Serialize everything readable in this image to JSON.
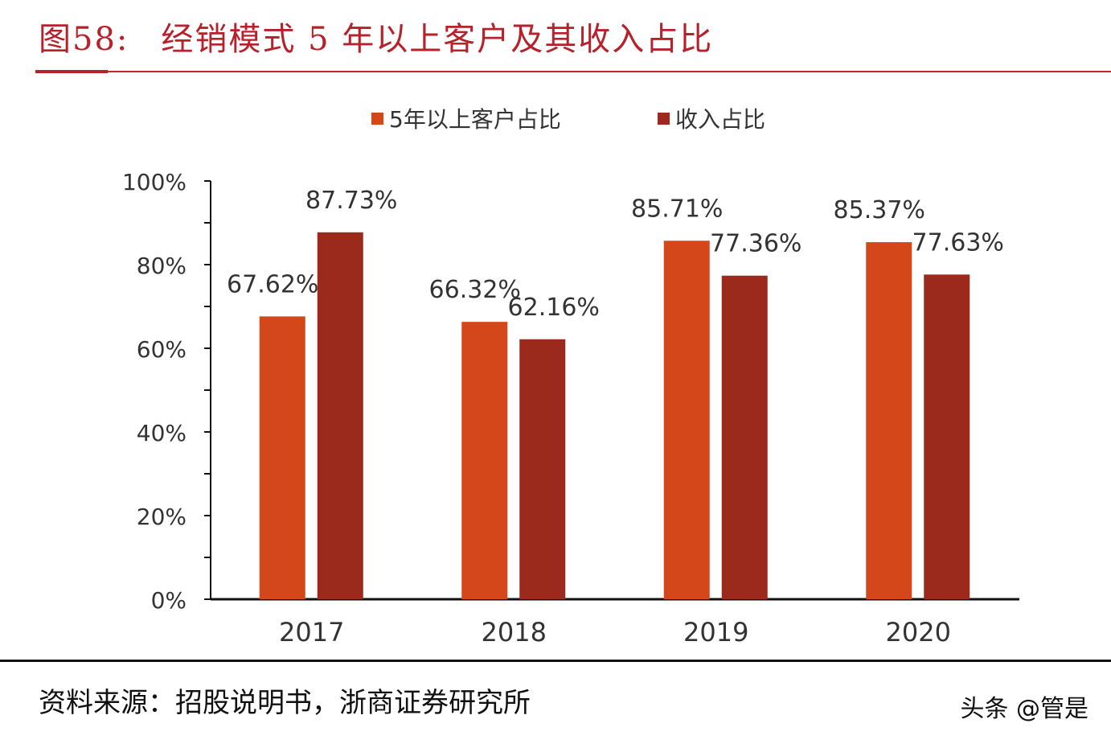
{
  "title_prefix": "图58:",
  "title_text": "经销模式 5 年以上客户及其收入占比",
  "source": "资料来源：招股说明书，浙商证券研究所",
  "watermark": "头条 @管是",
  "chart_data": {
    "type": "bar",
    "title": "经销模式 5 年以上客户及其收入占比",
    "categories": [
      "2017",
      "2018",
      "2019",
      "2020"
    ],
    "series": [
      {
        "name": "5年以上客户占比",
        "color": "#D4471A",
        "values": [
          67.62,
          66.32,
          85.71,
          85.37
        ],
        "labels": [
          "67.62%",
          "66.32%",
          "85.71%",
          "85.37%"
        ]
      },
      {
        "name": "收入占比",
        "color": "#9B2A1C",
        "values": [
          87.73,
          62.16,
          77.36,
          77.63
        ],
        "labels": [
          "87.73%",
          "62.16%",
          "77.36%",
          "77.63%"
        ]
      }
    ],
    "ylim": [
      0,
      100
    ],
    "yticks": [
      "0%",
      "20%",
      "40%",
      "60%",
      "80%",
      "100%"
    ],
    "legend": "top-center",
    "grid": false
  }
}
